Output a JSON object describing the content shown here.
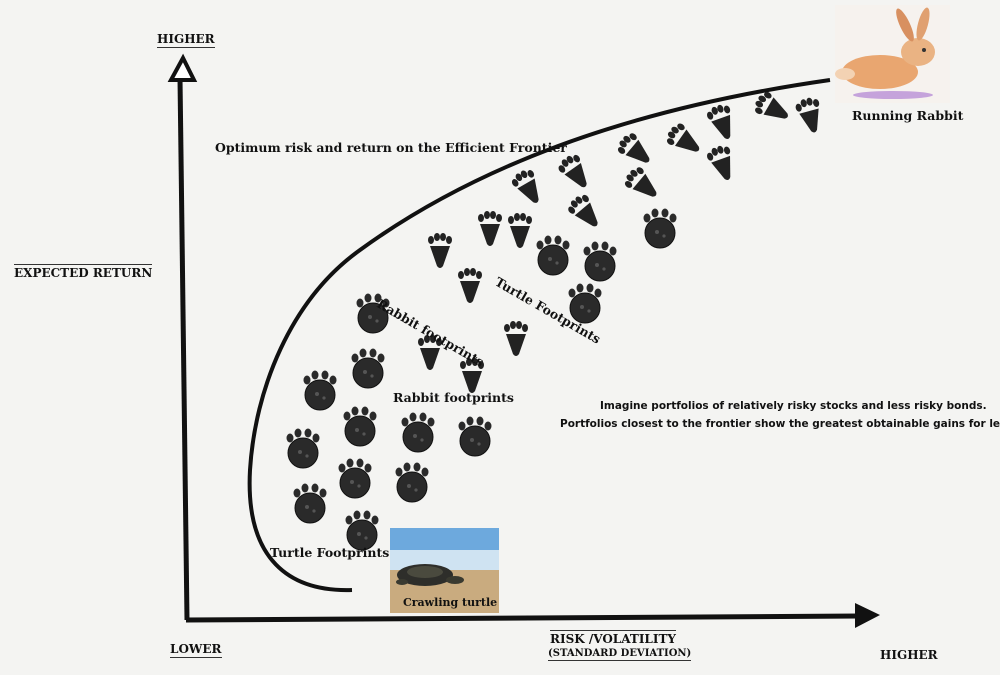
{
  "axes": {
    "y_top_label": "HIGHER",
    "y_label": "EXPECTED RETURN",
    "origin_label": "LOWER",
    "x_label": "RISK /VOLATILITY",
    "x_sublabel": "(STANDARD DEVIATION)",
    "x_right_label": "HIGHER"
  },
  "annotations": {
    "frontier": "Optimum risk and return on the Efficient Frontier",
    "running_rabbit": "Running Rabbit",
    "crawling_turtle": "Crawling turtle",
    "rabbit_footprints_1": "Rabbit footprints",
    "turtle_footprints_1": "Turtle Footprints",
    "rabbit_footprints_2": "Rabbit footprints",
    "turtle_footprints_2": "Turtle Footprints",
    "note_line1": "Imagine portfolios of relatively risky stocks and less risky bonds.",
    "note_line2": "Portfolios closest to the frontier show the greatest obtainable gains for least risk."
  },
  "icons": {
    "rabbit": "rabbit-photo",
    "turtle": "turtle-photo",
    "rabbit_print": "rabbit-footprint-icon",
    "turtle_print": "turtle-footprint-icon"
  }
}
